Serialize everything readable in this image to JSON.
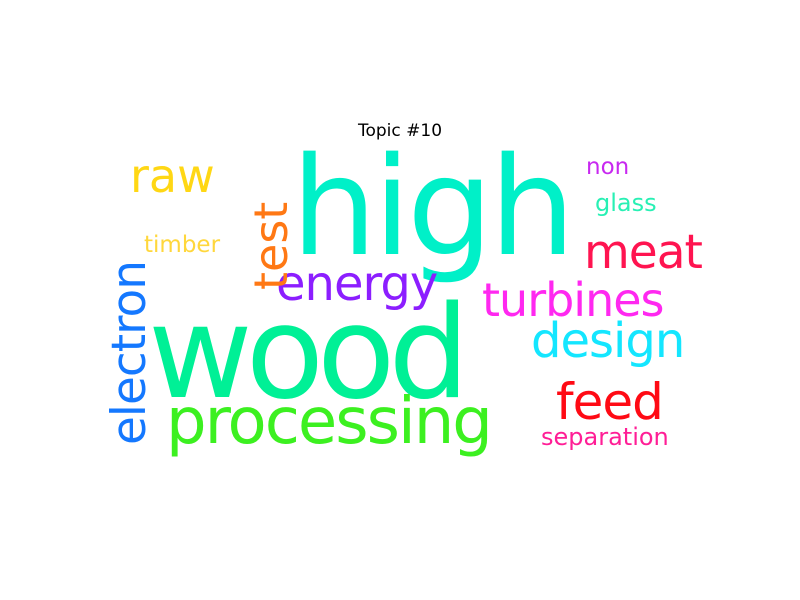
{
  "title": "Topic #10",
  "words": [
    {
      "text": "high",
      "color": "#00f0c8"
    },
    {
      "text": "wood",
      "color": "#00f096"
    },
    {
      "text": "processing",
      "color": "#3cf020"
    },
    {
      "text": "electron",
      "color": "#1478ff"
    },
    {
      "text": "energy",
      "color": "#8c1eff"
    },
    {
      "text": "test",
      "color": "#ff7814"
    },
    {
      "text": "raw",
      "color": "#ffd714"
    },
    {
      "text": "meat",
      "color": "#ff1450"
    },
    {
      "text": "turbines",
      "color": "#ff28f0"
    },
    {
      "text": "design",
      "color": "#14e6ff"
    },
    {
      "text": "feed",
      "color": "#ff0a14"
    },
    {
      "text": "separation",
      "color": "#ff1e96"
    },
    {
      "text": "timber",
      "color": "#ffd73c"
    },
    {
      "text": "glass",
      "color": "#28f0b4"
    },
    {
      "text": "non",
      "color": "#c828f0"
    }
  ]
}
